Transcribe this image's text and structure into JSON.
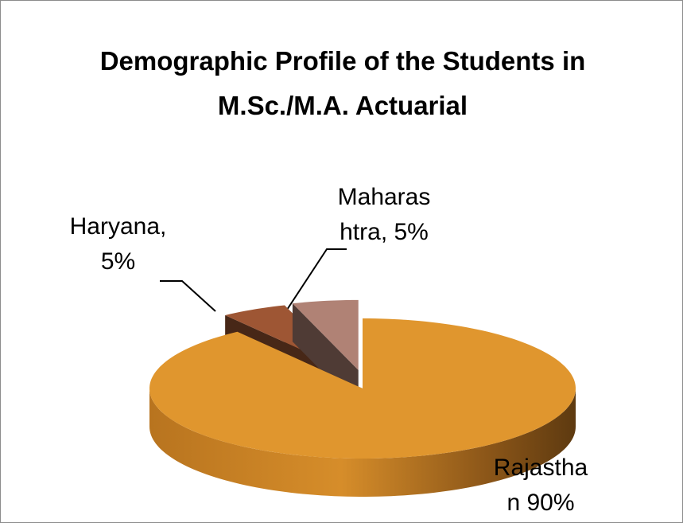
{
  "chart_data": {
    "type": "pie",
    "title": "Demographic Profile of the Students in M.Sc./M.A. Actuarial",
    "categories": [
      "Rajasthan",
      "Haryana,",
      "Maharashtra,"
    ],
    "values": [
      90,
      5,
      5
    ],
    "value_labels": [
      "90%",
      "5%",
      "5%"
    ],
    "colors": [
      "#e0962e",
      "#9e5634",
      "#b08275"
    ],
    "explode": [
      false,
      true,
      true
    ],
    "three_d": true
  }
}
